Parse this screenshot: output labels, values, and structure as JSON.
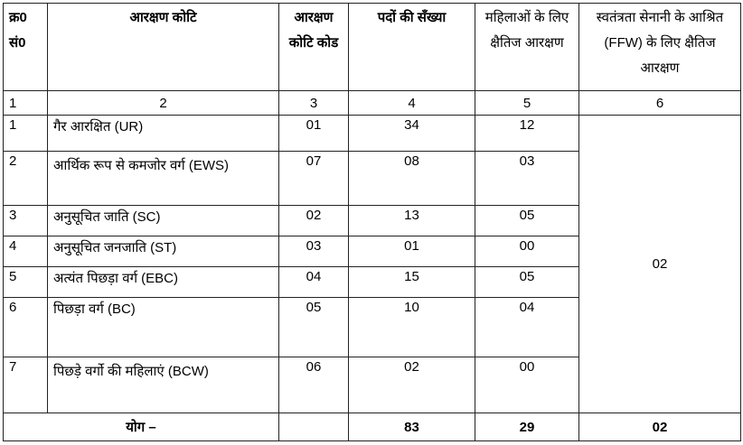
{
  "headers": [
    "क्र0 सं0",
    "आरक्षण कोटि",
    "आरक्षण कोटि कोड",
    "पदों की सँख्या",
    "महिलाओं के लिए क्षैतिज आरक्षण",
    "स्वतंत्रता सेनानी के आश्रित (FFW) के लिए क्षैतिज आरक्षण"
  ],
  "column_numbers": [
    "1",
    "2",
    "3",
    "4",
    "5",
    "6"
  ],
  "rows": [
    {
      "sn": "1",
      "category": "गैर आरक्षित (UR)",
      "code": "01",
      "posts": "34",
      "women": "12"
    },
    {
      "sn": "2",
      "category": "आर्थिक रूप से कमजोर वर्ग (EWS)",
      "code": "07",
      "posts": "08",
      "women": "03"
    },
    {
      "sn": "3",
      "category": "अनुसूचित जाति (SC)",
      "code": "02",
      "posts": "13",
      "women": "05"
    },
    {
      "sn": "4",
      "category": "अनुसूचित जनजाति (ST)",
      "code": "03",
      "posts": "01",
      "women": "00"
    },
    {
      "sn": "5",
      "category": "अत्यंत पिछड़ा वर्ग (EBC)",
      "code": "04",
      "posts": "15",
      "women": "05"
    },
    {
      "sn": "6",
      "category": "पिछड़ा वर्ग (BC)",
      "code": "05",
      "posts": "10",
      "women": "04"
    },
    {
      "sn": "7",
      "category": "पिछड़े वर्गो की महिलाएं (BCW)",
      "code": "06",
      "posts": "02",
      "women": "00"
    }
  ],
  "ffw_merged": "02",
  "total": {
    "label": "योग –",
    "posts": "83",
    "women": "29",
    "ffw": "02"
  }
}
